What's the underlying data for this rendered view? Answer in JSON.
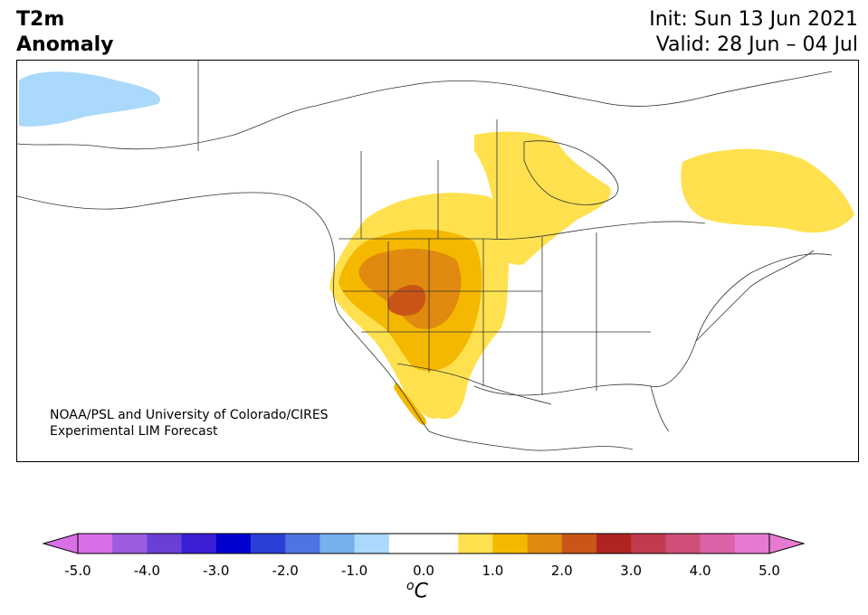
{
  "header": {
    "title_line1": "T2m",
    "title_line2": "Anomaly",
    "init": "Init: Sun 13 Jun 2021",
    "valid": "Valid: 28 Jun – 04 Jul"
  },
  "map": {
    "credit_line1": "NOAA/PSL and University of Colorado/CIRES",
    "credit_line2": "Experimental LIM Forecast",
    "anomaly_regions": [
      {
        "region": "Alaska north slope",
        "level": "-1.0 to -0.5"
      },
      {
        "region": "Hudson Bay west shore / central Canada",
        "level": "0.5 to 1.0"
      },
      {
        "region": "Quebec / Labrador",
        "level": "0.5 to 1.0"
      },
      {
        "region": "Western United States",
        "level": "0.5 to 2.5"
      },
      {
        "region": "Great Basin (Utah)",
        "level": "2.0 to 2.5"
      }
    ]
  },
  "colorbar": {
    "unit_base": "C",
    "unit_sup": "o",
    "ticks": [
      "-5.0",
      "-4.0",
      "-3.0",
      "-2.0",
      "-1.0",
      "0.0",
      "1.0",
      "2.0",
      "3.0",
      "4.0",
      "5.0"
    ],
    "colors": {
      "extend_low": "#d86fe6",
      "bins": [
        "#d86fe6",
        "#9d5ce0",
        "#6a3fd6",
        "#3b1fd4",
        "#0000cf",
        "#2a3fd6",
        "#4f73e0",
        "#78b0ef",
        "#aad9fb",
        "#ffffff",
        "#ffffff",
        "#ffe14f",
        "#f5b800",
        "#e08a10",
        "#c95518",
        "#b02420",
        "#c23a4e",
        "#cf4f78",
        "#dc62a8",
        "#e57ad0"
      ],
      "extend_high": "#e57ad0"
    }
  }
}
